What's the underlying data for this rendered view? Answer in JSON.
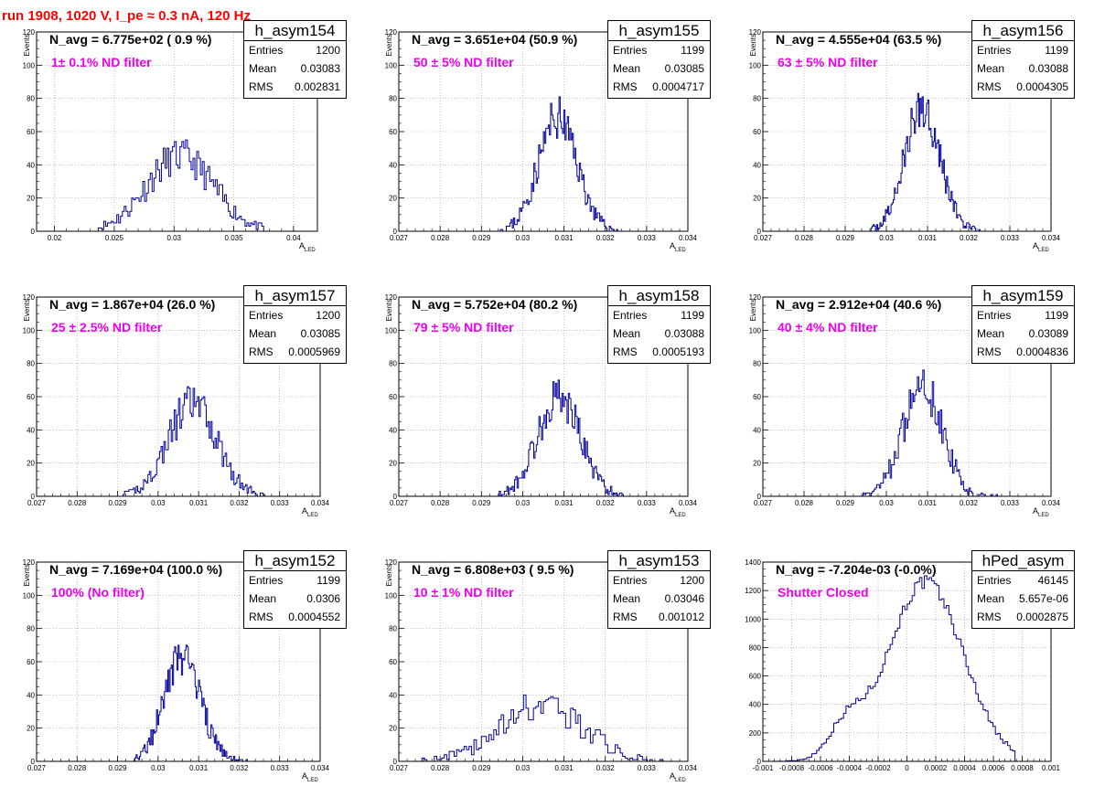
{
  "page_title": "run 1908,  1020 V, I_pe ≈ 0.3 nA, 120 Hz",
  "stat_labels": {
    "entries": "Entries",
    "mean": "Mean",
    "rms": "RMS"
  },
  "colors": {
    "title": "#ff0000",
    "histogram": "#000099",
    "annotation": "#ee00ee"
  },
  "chart_data": [
    {
      "type": "histogram",
      "name": "h_asym154",
      "navg": "N_avg = 6.775e+02 ( 0.9 %)",
      "filter": "1± 0.1% ND filter",
      "entries": "1200",
      "mean": "0.03083",
      "rms": "0.002831",
      "xlim": [
        0.0185,
        0.042
      ],
      "ylim": [
        0,
        120
      ],
      "xticks": [
        0.02,
        0.025,
        0.03,
        0.035,
        0.04
      ],
      "xticklabels": [
        "0.02",
        "0.025",
        "0.03",
        "0.035",
        "0.04"
      ],
      "yticks": [
        0,
        20,
        40,
        60,
        80,
        100,
        120
      ],
      "xlabel": "A",
      "xlabel_sub": "LED",
      "ylabel": "Events",
      "shape": {
        "mu": 0.0305,
        "sigma": 0.0028,
        "peak": 45,
        "xmin": 0.0235,
        "xmax": 0.0375,
        "nbins": 90,
        "seed": 11
      }
    },
    {
      "type": "histogram",
      "name": "h_asym155",
      "navg": "N_avg = 3.651e+04 (50.9 %)",
      "filter": "50 ± 5% ND filter",
      "entries": "1199",
      "mean": "0.03085",
      "rms": "0.0004717",
      "xlim": [
        0.027,
        0.034
      ],
      "ylim": [
        0,
        120
      ],
      "xticks": [
        0.027,
        0.028,
        0.029,
        0.03,
        0.031,
        0.032,
        0.033,
        0.034
      ],
      "xticklabels": [
        "0.027",
        "0.028",
        "0.029",
        "0.03",
        "0.031",
        "0.032",
        "0.033",
        "0.034"
      ],
      "yticks": [
        0,
        20,
        40,
        60,
        80,
        100,
        120
      ],
      "xlabel": "A",
      "xlabel_sub": "LED",
      "ylabel": "Events",
      "shape": {
        "mu": 0.03085,
        "sigma": 0.00047,
        "peak": 68,
        "xmin": 0.0294,
        "xmax": 0.0323,
        "nbins": 100,
        "seed": 23
      }
    },
    {
      "type": "histogram",
      "name": "h_asym156",
      "navg": "N_avg = 4.555e+04 (63.5 %)",
      "filter": "63 ± 5% ND filter",
      "entries": "1199",
      "mean": "0.03088",
      "rms": "0.0004305",
      "xlim": [
        0.027,
        0.034
      ],
      "ylim": [
        0,
        120
      ],
      "xticks": [
        0.027,
        0.028,
        0.029,
        0.03,
        0.031,
        0.032,
        0.033,
        0.034
      ],
      "xticklabels": [
        "0.027",
        "0.028",
        "0.029",
        "0.03",
        "0.031",
        "0.032",
        "0.033",
        "0.034"
      ],
      "yticks": [
        0,
        20,
        40,
        60,
        80,
        100,
        120
      ],
      "xlabel": "A",
      "xlabel_sub": "LED",
      "ylabel": "Events",
      "shape": {
        "mu": 0.03088,
        "sigma": 0.00043,
        "peak": 75,
        "xmin": 0.0296,
        "xmax": 0.0323,
        "nbins": 100,
        "seed": 37
      }
    },
    {
      "type": "histogram",
      "name": "h_asym157",
      "navg": "N_avg = 1.867e+04 (26.0 %)",
      "filter": "25 ± 2.5% ND filter",
      "entries": "1200",
      "mean": "0.03085",
      "rms": "0.0005969",
      "xlim": [
        0.027,
        0.034
      ],
      "ylim": [
        0,
        120
      ],
      "xticks": [
        0.027,
        0.028,
        0.029,
        0.03,
        0.031,
        0.032,
        0.033,
        0.034
      ],
      "xticklabels": [
        "0.027",
        "0.028",
        "0.029",
        "0.03",
        "0.031",
        "0.032",
        "0.033",
        "0.034"
      ],
      "yticks": [
        0,
        20,
        40,
        60,
        80,
        100,
        120
      ],
      "xlabel": "A",
      "xlabel_sub": "LED",
      "ylabel": "Events",
      "shape": {
        "mu": 0.03085,
        "sigma": 0.0006,
        "peak": 56,
        "xmin": 0.0291,
        "xmax": 0.0327,
        "nbins": 100,
        "seed": 41
      }
    },
    {
      "type": "histogram",
      "name": "h_asym158",
      "navg": "N_avg = 5.752e+04 (80.2 %)",
      "filter": "79 ± 5% ND filter",
      "entries": "1199",
      "mean": "0.03088",
      "rms": "0.0005193",
      "xlim": [
        0.027,
        0.034
      ],
      "ylim": [
        0,
        120
      ],
      "xticks": [
        0.027,
        0.028,
        0.029,
        0.03,
        0.031,
        0.032,
        0.033,
        0.034
      ],
      "xticklabels": [
        "0.027",
        "0.028",
        "0.029",
        "0.03",
        "0.031",
        "0.032",
        "0.033",
        "0.034"
      ],
      "yticks": [
        0,
        20,
        40,
        60,
        80,
        100,
        120
      ],
      "xlabel": "A",
      "xlabel_sub": "LED",
      "ylabel": "Events",
      "shape": {
        "mu": 0.03088,
        "sigma": 0.00052,
        "peak": 60,
        "xmin": 0.0294,
        "xmax": 0.0325,
        "nbins": 100,
        "seed": 53
      }
    },
    {
      "type": "histogram",
      "name": "h_asym159",
      "navg": "N_avg = 2.912e+04 (40.6 %)",
      "filter": "40 ± 4% ND filter",
      "entries": "1199",
      "mean": "0.03089",
      "rms": "0.0004836",
      "xlim": [
        0.027,
        0.034
      ],
      "ylim": [
        0,
        120
      ],
      "xticks": [
        0.027,
        0.028,
        0.029,
        0.03,
        0.031,
        0.032,
        0.033,
        0.034
      ],
      "xticklabels": [
        "0.027",
        "0.028",
        "0.029",
        "0.03",
        "0.031",
        "0.032",
        "0.033",
        "0.034"
      ],
      "yticks": [
        0,
        20,
        40,
        60,
        80,
        100,
        120
      ],
      "xlabel": "A",
      "xlabel_sub": "LED",
      "ylabel": "Events",
      "shape": {
        "mu": 0.03089,
        "sigma": 0.00048,
        "peak": 66,
        "xmin": 0.0294,
        "xmax": 0.0327,
        "nbins": 100,
        "seed": 67
      }
    },
    {
      "type": "histogram",
      "name": "h_asym152",
      "navg": "N_avg = 7.169e+04 (100.0 %)",
      "filter": "100% (No filter)",
      "entries": "1199",
      "mean": "0.0306",
      "rms": "0.0004552",
      "xlim": [
        0.027,
        0.034
      ],
      "ylim": [
        0,
        120
      ],
      "xticks": [
        0.027,
        0.028,
        0.029,
        0.03,
        0.031,
        0.032,
        0.033,
        0.034
      ],
      "xticklabels": [
        "0.027",
        "0.028",
        "0.029",
        "0.03",
        "0.031",
        "0.032",
        "0.033",
        "0.034"
      ],
      "yticks": [
        0,
        20,
        40,
        60,
        80,
        100,
        120
      ],
      "xlabel": "A",
      "xlabel_sub": "LED",
      "ylabel": "Events",
      "shape": {
        "mu": 0.0306,
        "sigma": 0.00045,
        "peak": 62,
        "xmin": 0.0294,
        "xmax": 0.0322,
        "nbins": 100,
        "seed": 79
      }
    },
    {
      "type": "histogram",
      "name": "h_asym153",
      "navg": "N_avg = 6.808e+03 ( 9.5 %)",
      "filter": "10 ± 1% ND filter",
      "entries": "1200",
      "mean": "0.03046",
      "rms": "0.001012",
      "xlim": [
        0.027,
        0.034
      ],
      "ylim": [
        0,
        120
      ],
      "xticks": [
        0.027,
        0.028,
        0.029,
        0.03,
        0.031,
        0.032,
        0.033,
        0.034
      ],
      "xticklabels": [
        "0.027",
        "0.028",
        "0.029",
        "0.03",
        "0.031",
        "0.032",
        "0.033",
        "0.034"
      ],
      "yticks": [
        0,
        20,
        40,
        60,
        80,
        100,
        120
      ],
      "xlabel": "A",
      "xlabel_sub": "LED",
      "ylabel": "Events",
      "shape": {
        "mu": 0.03046,
        "sigma": 0.001,
        "peak": 34,
        "xmin": 0.0275,
        "xmax": 0.0335,
        "nbins": 100,
        "seed": 83
      }
    },
    {
      "type": "histogram",
      "name": "hPed_asym",
      "navg": "N_avg = -7.204e-03 (-0.0%)",
      "filter": "Shutter Closed",
      "entries": "46145",
      "mean": "5.657e-06",
      "rms": "0.0002875",
      "xlim": [
        -0.001,
        0.001
      ],
      "ylim": [
        0,
        1400
      ],
      "xticks": [
        -0.001,
        -0.0008,
        -0.0006,
        -0.0004,
        -0.0002,
        0,
        0.0002,
        0.0004,
        0.0006,
        0.0008,
        0.001
      ],
      "xticklabels": [
        "-0.001",
        "-0.0008",
        "-0.0006",
        "-0.0004",
        "-0.0002",
        "0",
        "0.0002",
        "0.0004",
        "0.0006",
        "0.0008",
        "0.001"
      ],
      "yticks": [
        0,
        200,
        400,
        600,
        800,
        1000,
        1200,
        1400
      ],
      "xlabel": "",
      "xlabel_sub": "",
      "ylabel": "",
      "shape": {
        "mu": 0.00013,
        "sigma": 0.00026,
        "peak": 1260,
        "xmin": -0.00095,
        "xmax": 0.00075,
        "nbins": 100,
        "seed": 97,
        "shoulder": true
      }
    }
  ]
}
